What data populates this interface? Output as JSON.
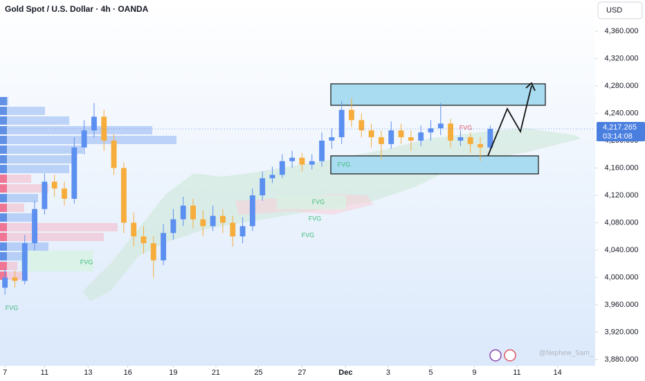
{
  "chart_data": {
    "type": "candlestick",
    "title": "Gold Spot / U.S. Dollar · 4h · OANDA",
    "currency": "USD",
    "watermark": "@Nephew_Sam_",
    "up_color": "#5b8ff0",
    "down_color": "#f6ad3c",
    "open": [
      3985,
      4000,
      3995,
      4050,
      4100,
      4140,
      4130,
      4115,
      4190,
      4215,
      4235,
      4200,
      4160,
      4080,
      4060,
      4050,
      4025,
      4065,
      4085,
      4105,
      4085,
      4075,
      4090,
      4080,
      4060,
      4075,
      4120,
      4145,
      4150,
      4170,
      4175,
      4165,
      4170,
      4200,
      4205,
      4245,
      4230,
      4215,
      4205,
      4195,
      4215,
      4205,
      4200,
      4212,
      4218,
      4225,
      4200,
      4205,
      4195,
      4190
    ],
    "high": [
      4012,
      4010,
      4062,
      4112,
      4152,
      4150,
      4140,
      4205,
      4230,
      4255,
      4245,
      4210,
      4168,
      4095,
      4075,
      4060,
      4078,
      4100,
      4118,
      4115,
      4098,
      4105,
      4100,
      4090,
      4088,
      4130,
      4155,
      4162,
      4180,
      4185,
      4182,
      4180,
      4212,
      4218,
      4258,
      4262,
      4240,
      4225,
      4215,
      4228,
      4225,
      4215,
      4222,
      4230,
      4255,
      4232,
      4215,
      4212,
      4205,
      4222
    ],
    "low": [
      3975,
      3985,
      3990,
      4040,
      4092,
      4118,
      4105,
      4108,
      4180,
      4205,
      4185,
      4150,
      4065,
      4045,
      4035,
      4000,
      4018,
      4055,
      4075,
      4072,
      4060,
      4068,
      4065,
      4045,
      4050,
      4068,
      4112,
      4138,
      4145,
      4160,
      4155,
      4158,
      4162,
      4188,
      4195,
      4220,
      4205,
      4190,
      4172,
      4188,
      4195,
      4185,
      4192,
      4200,
      4208,
      4190,
      4192,
      4182,
      4170,
      4185
    ],
    "close": [
      4000,
      3995,
      4050,
      4100,
      4140,
      4130,
      4115,
      4190,
      4215,
      4235,
      4200,
      4160,
      4080,
      4060,
      4050,
      4025,
      4065,
      4085,
      4105,
      4085,
      4075,
      4090,
      4080,
      4060,
      4075,
      4120,
      4145,
      4150,
      4170,
      4175,
      4165,
      4170,
      4200,
      4205,
      4245,
      4230,
      4215,
      4205,
      4195,
      4215,
      4205,
      4200,
      4212,
      4218,
      4225,
      4200,
      4205,
      4195,
      4190,
      4217.265
    ],
    "xlim": [
      -0.5,
      59.6
    ],
    "xticks": [
      {
        "value": 0,
        "label": "7"
      },
      {
        "value": 4,
        "label": "11"
      },
      {
        "value": 8.4,
        "label": "13"
      },
      {
        "value": 12.4,
        "label": "16"
      },
      {
        "value": 17,
        "label": "19"
      },
      {
        "value": 21.3,
        "label": "21"
      },
      {
        "value": 25.6,
        "label": "25"
      },
      {
        "value": 30,
        "label": "27"
      },
      {
        "value": 34.4,
        "label": "Dec"
      },
      {
        "value": 38.7,
        "label": "3"
      },
      {
        "value": 43,
        "label": "5"
      },
      {
        "value": 47.4,
        "label": "9"
      },
      {
        "value": 51.7,
        "label": "11"
      },
      {
        "value": 55.8,
        "label": "14"
      }
    ],
    "ylim": [
      3870.9,
      4405.6
    ],
    "yticks": [
      {
        "value": 3880,
        "label": "3,880.000"
      },
      {
        "value": 3920,
        "label": "3,920.000"
      },
      {
        "value": 3960,
        "label": "3,960.000"
      },
      {
        "value": 4000,
        "label": "4,000.000"
      },
      {
        "value": 4040,
        "label": "4,040.000"
      },
      {
        "value": 4080,
        "label": "4,080.000"
      },
      {
        "value": 4120,
        "label": "4,120.000"
      },
      {
        "value": 4160,
        "label": "4,160.000"
      },
      {
        "value": 4200,
        "label": "4,200.000"
      },
      {
        "value": 4240,
        "label": "4,240.000"
      },
      {
        "value": 4280,
        "label": "4,280.000"
      },
      {
        "value": 4320,
        "label": "4,320.000"
      },
      {
        "value": 4360,
        "label": "4,360.000"
      }
    ],
    "last_price": {
      "value": 4217.265,
      "label": "4,217.265"
    },
    "countdown": "03:14:08",
    "annotations": [
      "FVG",
      "FVG",
      "FVG",
      "FVG",
      "FVG",
      "FVG",
      "FVG"
    ]
  }
}
